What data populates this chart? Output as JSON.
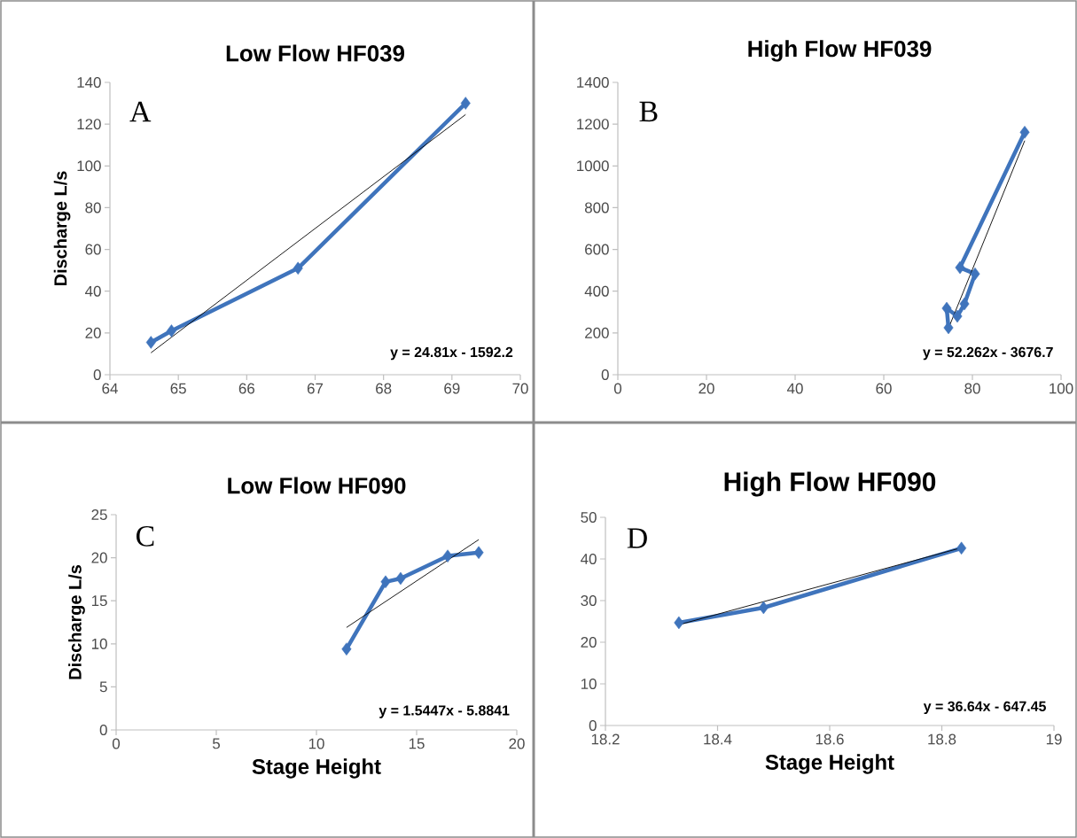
{
  "chart_data": [
    {
      "type": "line",
      "title": "Low Flow HF039",
      "ylabel": "Discharge L/s",
      "marker": "diamond",
      "xlim": [
        64,
        70
      ],
      "ylim": [
        0,
        140
      ],
      "xticks": [
        64,
        65,
        66,
        67,
        68,
        69,
        70
      ],
      "yticks": [
        0,
        20,
        40,
        60,
        80,
        100,
        120,
        140
      ],
      "annotations": [
        "A",
        "y = 24.81x - 1592.2"
      ],
      "series": [
        {
          "color": "#3f74bc",
          "x": [
            64.6,
            64.9,
            66.75,
            69.2
          ],
          "values": [
            15.5,
            21,
            51,
            130
          ]
        },
        {
          "type": "line",
          "marker": "none",
          "color": "#000000",
          "x": [
            64.6,
            69.2
          ],
          "values": [
            10.5,
            124.6
          ]
        }
      ]
    },
    {
      "type": "line",
      "title": "High Flow HF039",
      "marker": "diamond",
      "xlim": [
        0,
        100
      ],
      "ylim": [
        0,
        1400
      ],
      "xticks": [
        0,
        20,
        40,
        60,
        80,
        100
      ],
      "yticks": [
        0,
        200,
        400,
        600,
        800,
        1000,
        1200,
        1400
      ],
      "annotations": [
        "B",
        "y = 52.262x - 3676.7"
      ],
      "series": [
        {
          "color": "#3f74bc",
          "x": [
            74.6,
            74.2,
            76.6,
            78.2,
            80.6,
            77.2,
            91.8
          ],
          "values": [
            225,
            318,
            280,
            339,
            483,
            513,
            1161
          ]
        },
        {
          "type": "line",
          "marker": "none",
          "color": "#000000",
          "x": [
            74.6,
            91.8
          ],
          "values": [
            222,
            1121
          ]
        }
      ]
    },
    {
      "type": "line",
      "title": "Low Flow HF090",
      "xlabel": "Stage Height",
      "ylabel": "Discharge L/s",
      "marker": "diamond",
      "xlim": [
        0,
        20
      ],
      "ylim": [
        0,
        25
      ],
      "xticks": [
        0,
        5,
        10,
        15,
        20
      ],
      "yticks": [
        0,
        5,
        10,
        15,
        20,
        25
      ],
      "annotations": [
        "C",
        "y = 1.5447x - 5.8841"
      ],
      "series": [
        {
          "color": "#3f74bc",
          "x": [
            11.5,
            13.45,
            14.2,
            16.55,
            18.1
          ],
          "values": [
            9.4,
            17.2,
            17.6,
            20.2,
            20.6
          ]
        },
        {
          "type": "line",
          "marker": "none",
          "color": "#000000",
          "x": [
            11.5,
            18.1
          ],
          "values": [
            11.9,
            22.1
          ]
        }
      ]
    },
    {
      "type": "line",
      "title": "High Flow HF090",
      "xlabel": "Stage Height",
      "marker": "diamond",
      "xlim": [
        18.2,
        19
      ],
      "ylim": [
        0,
        50
      ],
      "xticks": [
        18.2,
        18.4,
        18.6,
        18.8,
        19
      ],
      "yticks": [
        0,
        10,
        20,
        30,
        40,
        50
      ],
      "annotations": [
        "D",
        "y = 36.64x - 647.45"
      ],
      "series": [
        {
          "color": "#3f74bc",
          "x": [
            18.331,
            18.482,
            18.835
          ],
          "values": [
            24.7,
            28.3,
            42.6
          ]
        },
        {
          "type": "line",
          "marker": "none",
          "color": "#000000",
          "x": [
            18.331,
            18.835
          ],
          "values": [
            24.2,
            42.7
          ]
        }
      ]
    }
  ]
}
